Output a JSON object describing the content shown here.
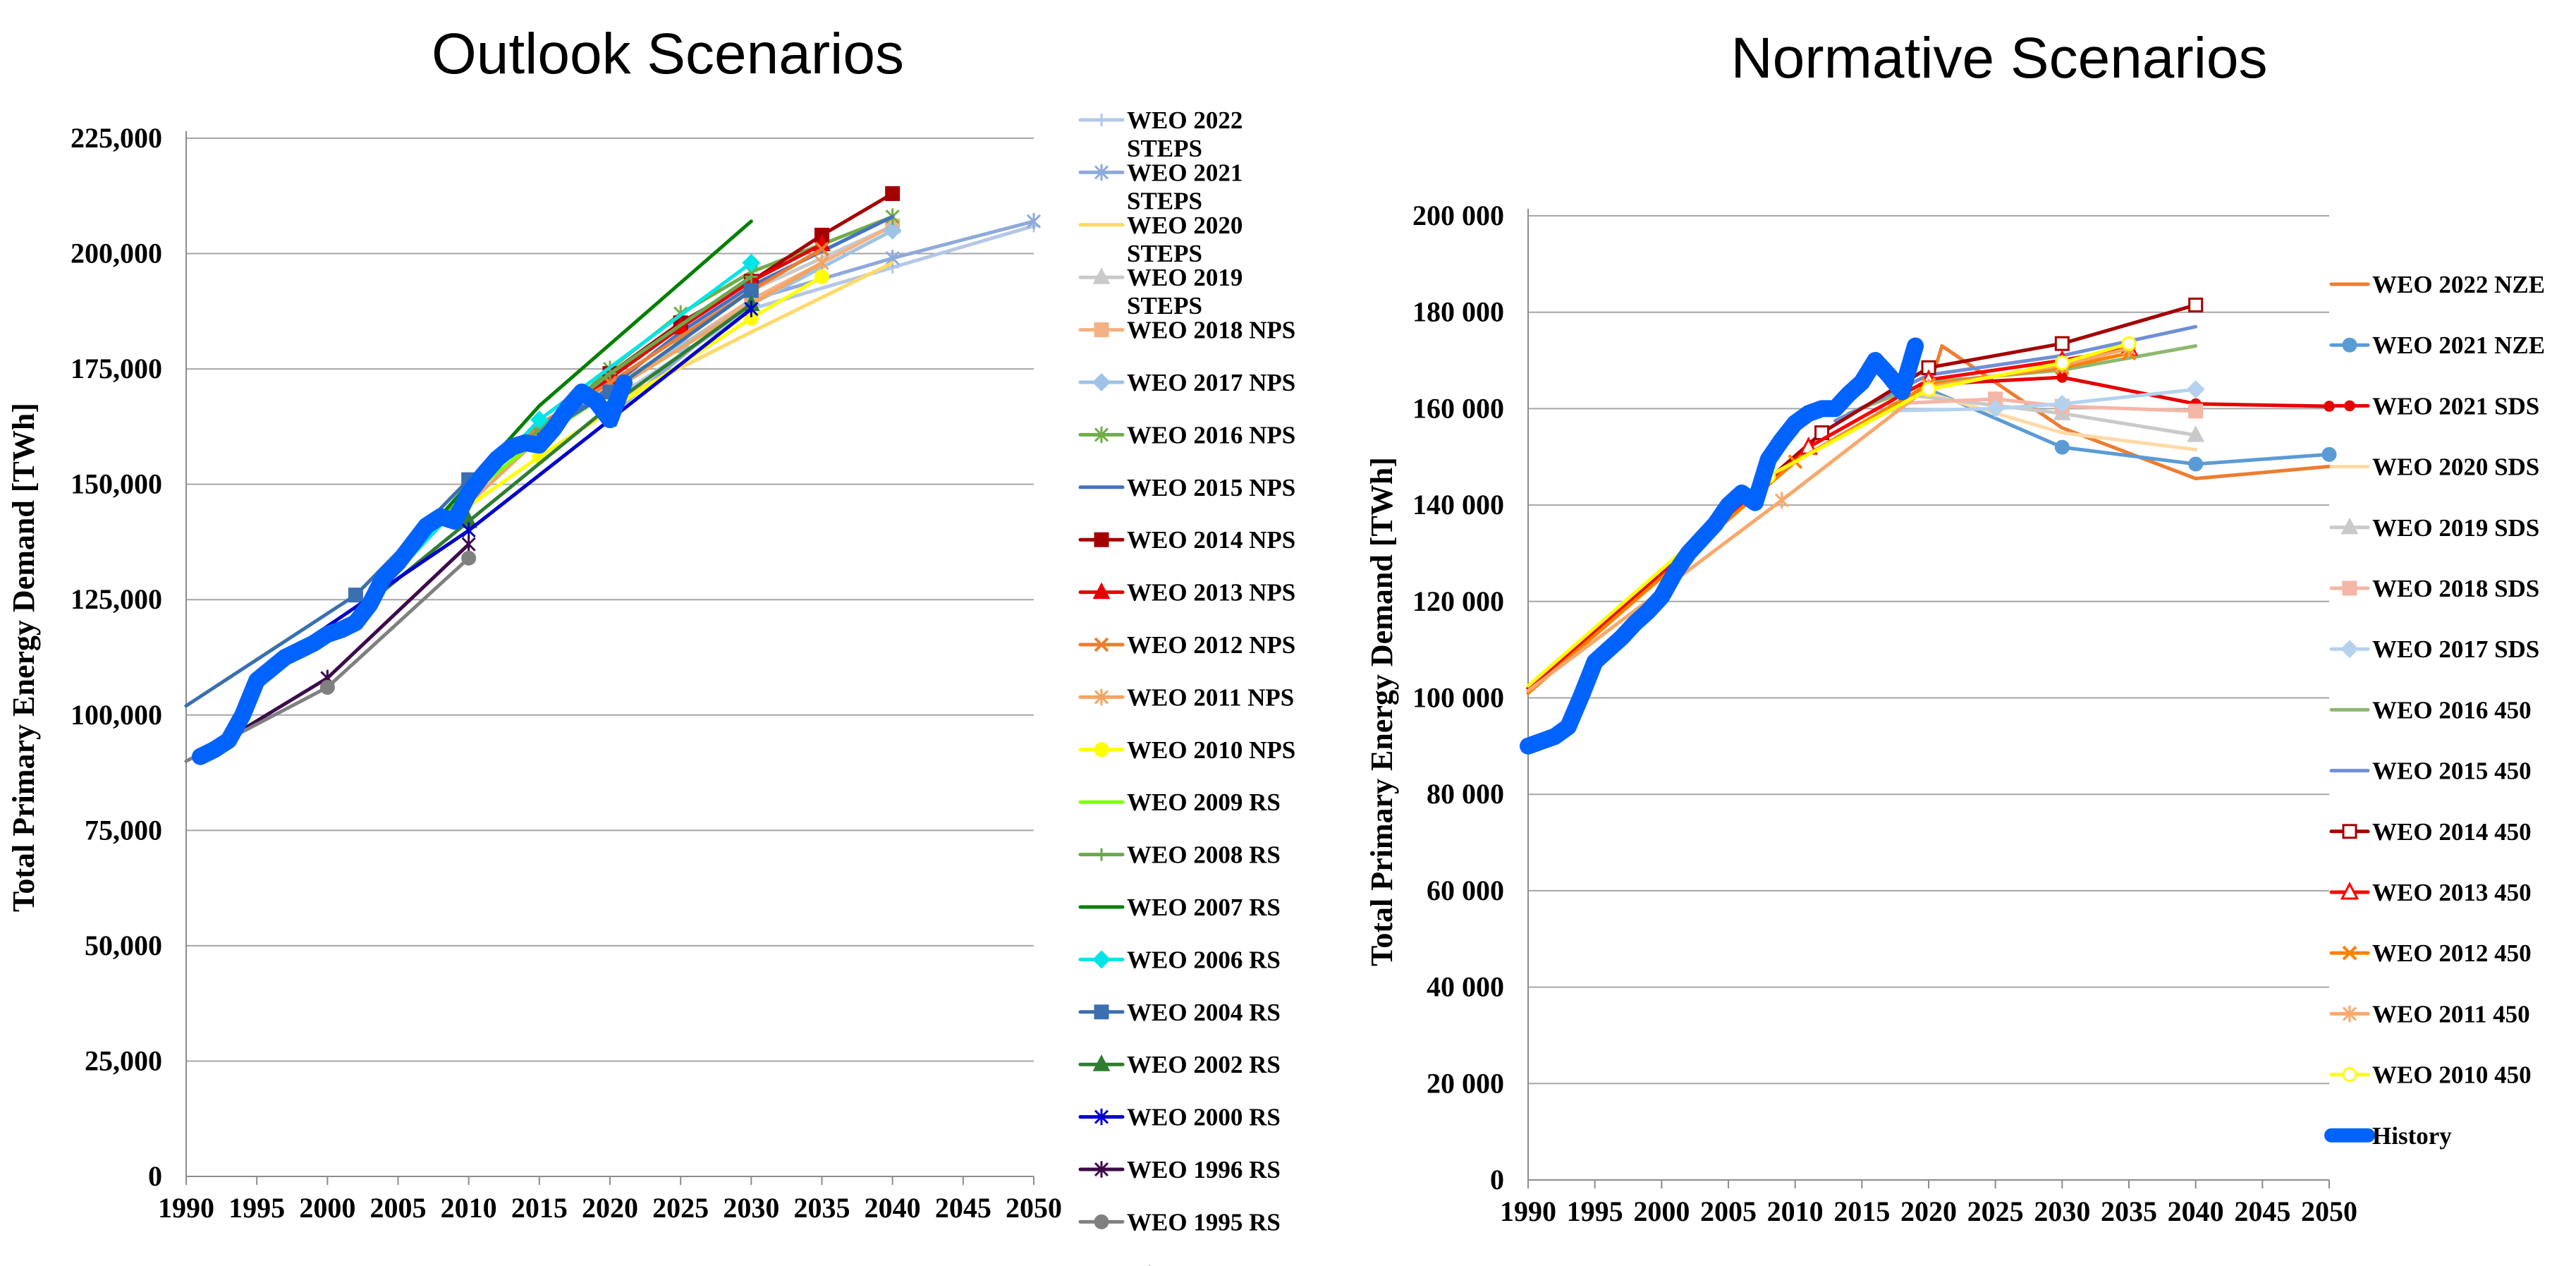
{
  "chart_data": [
    {
      "type": "line",
      "title": "Outlook Scenarios",
      "xlabel": "",
      "ylabel": "Total Primary Energy Demand [TWh]",
      "xlim": [
        1990,
        2050
      ],
      "ylim": [
        0,
        225000
      ],
      "x_ticks": [
        "1990",
        "1995",
        "2000",
        "2005",
        "2010",
        "2015",
        "2020",
        "2025",
        "2030",
        "2035",
        "2040",
        "2045",
        "2050"
      ],
      "y_ticks": [
        "0",
        "25,000",
        "50,000",
        "75,000",
        "100,000",
        "125,000",
        "150,000",
        "175,000",
        "200,000",
        "225,000"
      ],
      "grid": true,
      "legend_position": "right",
      "series": [
        {
          "name": "WEO 2022 STEPS",
          "legend_lines": [
            "WEO 2022",
            "STEPS"
          ],
          "color": "#b4c7e7",
          "marker": "plus",
          "x": [
            2021,
            2030,
            2040,
            2050
          ],
          "y": [
            170000,
            188000,
            197000,
            206000
          ]
        },
        {
          "name": "WEO 2021 STEPS",
          "legend_lines": [
            "WEO 2021",
            "STEPS"
          ],
          "color": "#8ea9db",
          "marker": "star",
          "x": [
            2020,
            2030,
            2040,
            2050
          ],
          "y": [
            165000,
            190000,
            199000,
            207000
          ]
        },
        {
          "name": "WEO 2020 STEPS",
          "legend_lines": [
            "WEO 2020",
            "STEPS"
          ],
          "color": "#ffd966",
          "marker": "none",
          "x": [
            2019,
            2030,
            2040
          ],
          "y": [
            166000,
            183000,
            198000
          ]
        },
        {
          "name": "WEO 2019 STEPS",
          "legend_lines": [
            "WEO 2019",
            "STEPS"
          ],
          "color": "#c9c9c9",
          "marker": "triangle",
          "x": [
            2018,
            2030,
            2040
          ],
          "y": [
            168000,
            192000,
            206000
          ]
        },
        {
          "name": "WEO 2018 NPS",
          "legend_lines": [
            "WEO 2018 NPS"
          ],
          "color": "#f4b183",
          "marker": "square",
          "x": [
            2017,
            2025,
            2030,
            2040
          ],
          "y": [
            166000,
            180000,
            190000,
            206000
          ]
        },
        {
          "name": "WEO 2017 NPS",
          "legend_lines": [
            "WEO 2017 NPS"
          ],
          "color": "#9dc3e6",
          "marker": "diamond",
          "x": [
            2016,
            2025,
            2030,
            2040
          ],
          "y": [
            163000,
            180000,
            189000,
            205000
          ]
        },
        {
          "name": "WEO 2016 NPS",
          "legend_lines": [
            "WEO 2016 NPS"
          ],
          "color": "#70ad47",
          "marker": "star",
          "x": [
            2014,
            2020,
            2025,
            2030,
            2040
          ],
          "y": [
            158000,
            175000,
            187000,
            196000,
            208000
          ]
        },
        {
          "name": "WEO 2015 NPS",
          "legend_lines": [
            "WEO 2015 NPS"
          ],
          "color": "#4472c4",
          "marker": "none",
          "x": [
            2013,
            2020,
            2025,
            2030,
            2040
          ],
          "y": [
            156000,
            171000,
            183000,
            193000,
            208000
          ]
        },
        {
          "name": "WEO 2014 NPS",
          "legend_lines": [
            "WEO 2014 NPS"
          ],
          "color": "#a50000",
          "marker": "square",
          "x": [
            2012,
            2020,
            2025,
            2030,
            2035,
            2040
          ],
          "y": [
            155000,
            174000,
            185000,
            194000,
            204000,
            213000
          ]
        },
        {
          "name": "WEO 2013 NPS",
          "legend_lines": [
            "WEO 2013 NPS"
          ],
          "color": "#e60000",
          "marker": "triangle",
          "x": [
            2011,
            2020,
            2025,
            2030,
            2035
          ],
          "y": [
            152000,
            173000,
            184000,
            194000,
            202000
          ]
        },
        {
          "name": "WEO 2012 NPS",
          "legend_lines": [
            "WEO 2012 NPS"
          ],
          "color": "#ed7d31",
          "marker": "x",
          "x": [
            2010,
            2015,
            2020,
            2030,
            2035
          ],
          "y": [
            147000,
            163000,
            172000,
            192000,
            201000
          ]
        },
        {
          "name": "WEO 2011 NPS",
          "legend_lines": [
            "WEO 2011 NPS"
          ],
          "color": "#f4a460",
          "marker": "star",
          "x": [
            2009,
            2015,
            2020,
            2030,
            2035
          ],
          "y": [
            143000,
            160000,
            170000,
            189000,
            198000
          ]
        },
        {
          "name": "WEO 2010 NPS",
          "legend_lines": [
            "WEO 2010 NPS"
          ],
          "color": "#ffff00",
          "marker": "circle",
          "x": [
            2008,
            2015,
            2020,
            2030,
            2035
          ],
          "y": [
            141000,
            156000,
            166000,
            186000,
            195000
          ]
        },
        {
          "name": "WEO 2009 RS",
          "legend_lines": [
            "WEO 2009 RS"
          ],
          "color": "#7fff00",
          "marker": "none",
          "x": [
            2007,
            2015,
            2020,
            2030
          ],
          "y": [
            140000,
            160000,
            170000,
            192000
          ]
        },
        {
          "name": "WEO 2008 RS",
          "legend_lines": [
            "WEO 2008 RS"
          ],
          "color": "#6aa84f",
          "marker": "plus",
          "x": [
            2006,
            2015,
            2020,
            2030
          ],
          "y": [
            137000,
            162000,
            174000,
            195000
          ]
        },
        {
          "name": "WEO 2007 RS",
          "legend_lines": [
            "WEO 2007 RS"
          ],
          "color": "#008000",
          "marker": "none",
          "x": [
            2005,
            2015,
            2030
          ],
          "y": [
            133000,
            167000,
            207000
          ]
        },
        {
          "name": "WEO 2006 RS",
          "legend_lines": [
            "WEO 2006 RS"
          ],
          "color": "#00e5e5",
          "marker": "diamond",
          "x": [
            2004,
            2015,
            2030
          ],
          "y": [
            128000,
            164000,
            198000
          ]
        },
        {
          "name": "WEO 2004 RS",
          "legend_lines": [
            "WEO 2004 RS"
          ],
          "color": "#3a6fb0",
          "marker": "square",
          "x": [
            1990,
            2002,
            2010,
            2020,
            2030
          ],
          "y": [
            102000,
            126000,
            151000,
            170000,
            192000
          ]
        },
        {
          "name": "WEO 2002 RS",
          "legend_lines": [
            "WEO 2002 RS"
          ],
          "color": "#2e7d32",
          "marker": "triangle",
          "x": [
            2000,
            2010,
            2020,
            2030
          ],
          "y": [
            117000,
            142000,
            167000,
            189000
          ]
        },
        {
          "name": "WEO 2000 RS",
          "legend_lines": [
            "WEO 2000 RS"
          ],
          "color": "#0000cd",
          "marker": "star",
          "x": [
            1997,
            2010,
            2020,
            2030
          ],
          "y": [
            113000,
            140000,
            164000,
            188000
          ]
        },
        {
          "name": "WEO 1996 RS",
          "legend_lines": [
            "WEO 1996 RS"
          ],
          "color": "#3d0b4a",
          "marker": "star",
          "x": [
            1993,
            2000,
            2010
          ],
          "y": [
            95000,
            108000,
            137000
          ]
        },
        {
          "name": "WEO 1995 RS",
          "legend_lines": [
            "WEO 1995 RS"
          ],
          "color": "#808080",
          "marker": "circle",
          "x": [
            1990,
            2000,
            2010
          ],
          "y": [
            90000,
            106000,
            134000
          ]
        },
        {
          "name": "History",
          "legend_lines": [],
          "color": "#0063ff",
          "marker": "none",
          "history": true,
          "x": [
            1991,
            1992,
            1993,
            1994,
            1995,
            1996,
            1997,
            1998,
            1999,
            2000,
            2001,
            2002,
            2003,
            2004,
            2005,
            2006,
            2007,
            2008,
            2009,
            2010,
            2011,
            2012,
            2013,
            2014,
            2015,
            2016,
            2017,
            2018,
            2019,
            2020,
            2021
          ],
          "y": [
            91000,
            92500,
            94500,
            100000,
            107500,
            110000,
            112500,
            114000,
            115500,
            117500,
            118500,
            120000,
            124000,
            130000,
            133000,
            137000,
            141000,
            143000,
            142000,
            148000,
            152000,
            155500,
            158000,
            159000,
            158500,
            162000,
            166500,
            170000,
            168000,
            164000,
            172000
          ]
        }
      ]
    },
    {
      "type": "line",
      "title": "Normative Scenarios",
      "xlabel": "",
      "ylabel": "Total Primary Energy Demand [TWh]",
      "xlim": [
        1990,
        2050
      ],
      "ylim": [
        0,
        200000
      ],
      "x_ticks": [
        "1990",
        "1995",
        "2000",
        "2005",
        "2010",
        "2015",
        "2020",
        "2025",
        "2030",
        "2035",
        "2040",
        "2045",
        "2050"
      ],
      "y_ticks": [
        "0",
        "20 000",
        "40 000",
        "60 000",
        "80 000",
        "100 000",
        "120 000",
        "140 000",
        "160 000",
        "180 000",
        "200 000"
      ],
      "grid": true,
      "legend_position": "right",
      "series": [
        {
          "name": "WEO 2022 NZE",
          "color": "#ed7d31",
          "marker": "none",
          "x": [
            2020,
            2021,
            2030,
            2040,
            2050
          ],
          "y": [
            164000,
            173000,
            156000,
            145500,
            148000
          ]
        },
        {
          "name": "WEO 2021 NZE",
          "color": "#5b9bd5",
          "marker": "circle",
          "x": [
            2020,
            2030,
            2040,
            2050
          ],
          "y": [
            164000,
            152000,
            148500,
            150500
          ]
        },
        {
          "name": "WEO 2021 SDS",
          "color": "#e60000",
          "marker": "dot",
          "x": [
            2020,
            2030,
            2040,
            2050
          ],
          "y": [
            165000,
            166500,
            161000,
            160500
          ]
        },
        {
          "name": "WEO 2020 SDS",
          "color": "#ffd9a6",
          "marker": "none",
          "x": [
            2019,
            2030,
            2040
          ],
          "y": [
            164000,
            155000,
            151500
          ]
        },
        {
          "name": "WEO 2019 SDS",
          "color": "#c9c9c9",
          "marker": "triangle",
          "x": [
            2018,
            2030,
            2040
          ],
          "y": [
            163000,
            159000,
            154500
          ]
        },
        {
          "name": "WEO 2018 SDS",
          "color": "#f4b6a6",
          "marker": "square",
          "x": [
            2017,
            2025,
            2030,
            2040
          ],
          "y": [
            161000,
            162000,
            160500,
            159500
          ]
        },
        {
          "name": "WEO 2017 SDS",
          "color": "#b4d2ee",
          "marker": "diamond",
          "x": [
            2016,
            2025,
            2030,
            2040
          ],
          "y": [
            159500,
            160000,
            161000,
            164000
          ]
        },
        {
          "name": "WEO 2016 450",
          "color": "#8db870",
          "marker": "none",
          "x": [
            2014,
            2020,
            2030,
            2040
          ],
          "y": [
            159000,
            165500,
            168000,
            173000
          ]
        },
        {
          "name": "WEO 2015 450",
          "color": "#6f8fd6",
          "marker": "none",
          "x": [
            2013,
            2020,
            2030,
            2040
          ],
          "y": [
            157500,
            167000,
            171000,
            177000
          ]
        },
        {
          "name": "WEO 2014 450",
          "color": "#a50000",
          "marker": "square-open",
          "x": [
            1990,
            2012,
            2020,
            2030,
            2040
          ],
          "y": [
            102000,
            155000,
            168500,
            173500,
            181500
          ]
        },
        {
          "name": "WEO 2013 450",
          "color": "#ff0000",
          "marker": "triangle-open",
          "x": [
            1990,
            2011,
            2020,
            2030,
            2035
          ],
          "y": [
            101500,
            152000,
            166000,
            170000,
            172500
          ]
        },
        {
          "name": "WEO 2012 450",
          "color": "#ff8000",
          "marker": "x",
          "x": [
            1990,
            2010,
            2020,
            2030,
            2035
          ],
          "y": [
            101000,
            149000,
            165000,
            168500,
            171500
          ]
        },
        {
          "name": "WEO 2011 450",
          "color": "#f9a86b",
          "marker": "star",
          "x": [
            1990,
            2009,
            2020,
            2030,
            2035
          ],
          "y": [
            101500,
            141000,
            164500,
            169000,
            172500
          ]
        },
        {
          "name": "WEO 2010 450",
          "color": "#ffff00",
          "marker": "circle-open",
          "x": [
            1990,
            2008,
            2020,
            2030,
            2035
          ],
          "y": [
            102500,
            146000,
            164000,
            169500,
            173500
          ]
        },
        {
          "name": "History",
          "color": "#0063ff",
          "marker": "none",
          "history": true,
          "x": [
            1990,
            1991,
            1992,
            1993,
            1994,
            1995,
            1996,
            1997,
            1998,
            1999,
            2000,
            2001,
            2002,
            2003,
            2004,
            2005,
            2006,
            2007,
            2008,
            2009,
            2010,
            2011,
            2012,
            2013,
            2014,
            2015,
            2016,
            2017,
            2018,
            2019
          ],
          "y": [
            90000,
            91000,
            92000,
            94000,
            100500,
            107500,
            110000,
            112500,
            115500,
            118000,
            121000,
            126000,
            130000,
            133000,
            136000,
            140000,
            142500,
            140500,
            149500,
            153500,
            157000,
            159000,
            160000,
            160000,
            163000,
            165500,
            170000,
            167000,
            163500,
            173000
          ]
        }
      ]
    }
  ]
}
